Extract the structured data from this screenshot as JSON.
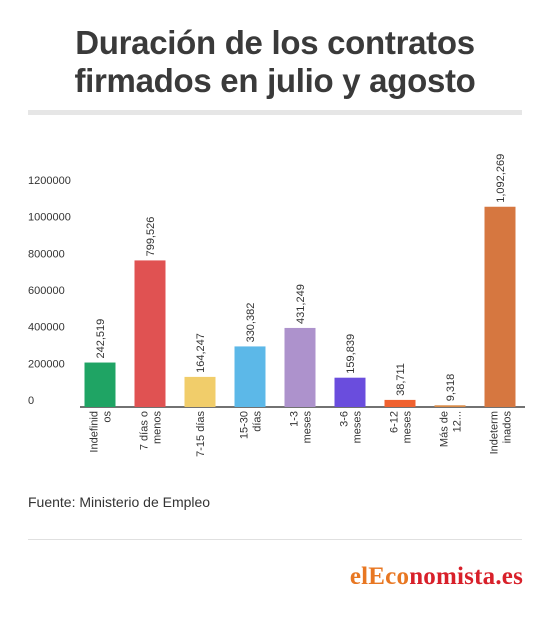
{
  "header": {
    "title_line1": "Duración de los contratos",
    "title_line2": "firmados en julio y agosto"
  },
  "footer": {
    "source": "Fuente: Ministerio de Empleo",
    "brand_part1": "elEco",
    "brand_part2": "nomista.es"
  },
  "chart_data": {
    "type": "bar",
    "title": "Duración de los contratos firmados en julio y agosto",
    "categories": [
      [
        "Indefinid",
        "os"
      ],
      [
        "7 días o",
        "menos"
      ],
      [
        "7-15 días"
      ],
      [
        "15-30",
        "días"
      ],
      [
        "1-3",
        "meses"
      ],
      [
        "3-6",
        "meses"
      ],
      [
        "6-12",
        "meses"
      ],
      [
        "Más de",
        "12..."
      ],
      [
        "Indeterm",
        "inados"
      ]
    ],
    "values": [
      242519,
      799526,
      164247,
      330382,
      431249,
      159839,
      38711,
      9318,
      1092269
    ],
    "data_labels": [
      "242,519",
      "799,526",
      "164,247",
      "330,382",
      "431,249",
      "159,839",
      "38,711",
      "9,318",
      "1,092,269"
    ],
    "colors": [
      "#1fa464",
      "#e05252",
      "#f1cd6a",
      "#5cb8e8",
      "#ad92cc",
      "#6a4ddd",
      "#f0612f",
      "#d88a47",
      "#d67740"
    ],
    "y_ticks": [
      "0",
      "200000",
      "400000",
      "600000",
      "800000",
      "1000000",
      "1200000"
    ],
    "ylim": [
      0,
      1200000
    ],
    "grid": false,
    "legend": "none"
  }
}
